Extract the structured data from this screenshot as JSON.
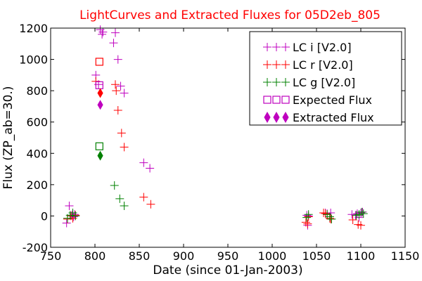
{
  "chart_data": {
    "type": "scatter",
    "title": "LightCurves and Extracted Fluxes for 05D2eb_805",
    "title_color": "#ff0000",
    "xlabel": "Date (since 01-Jan-2003)",
    "ylabel": "Flux (ZP_ab=30.)",
    "xlim": [
      750,
      1150
    ],
    "ylim": [
      -200,
      1200
    ],
    "xticks": [
      750,
      800,
      850,
      900,
      950,
      1000,
      1050,
      1100,
      1150
    ],
    "yticks": [
      -200,
      0,
      200,
      400,
      600,
      800,
      1000,
      1200
    ],
    "grid": false,
    "legend_position": "top-right",
    "series": [
      {
        "name": "LC i [V2.0]",
        "color": "#bf00bf",
        "marker": "plus",
        "points": [
          [
            768,
            -45
          ],
          [
            771,
            65
          ],
          [
            774,
            5
          ],
          [
            776,
            -5
          ],
          [
            777,
            10
          ],
          [
            801,
            900
          ],
          [
            804,
            840
          ],
          [
            806,
            1190
          ],
          [
            808,
            1160
          ],
          [
            809,
            1175
          ],
          [
            821,
            1105
          ],
          [
            823,
            1170
          ],
          [
            826,
            1000
          ],
          [
            829,
            830
          ],
          [
            833,
            785
          ],
          [
            855,
            340
          ],
          [
            862,
            305
          ],
          [
            1039,
            5
          ],
          [
            1040,
            -60
          ],
          [
            1041,
            0
          ],
          [
            1060,
            20
          ],
          [
            1062,
            15
          ],
          [
            1066,
            20
          ],
          [
            1090,
            10
          ],
          [
            1094,
            5
          ],
          [
            1096,
            15
          ],
          [
            1098,
            -10
          ],
          [
            1100,
            20
          ],
          [
            1102,
            25
          ]
        ]
      },
      {
        "name": "LC r [V2.0]",
        "color": "#ff0000",
        "marker": "plus",
        "points": [
          [
            769,
            -20
          ],
          [
            773,
            0
          ],
          [
            775,
            -15
          ],
          [
            778,
            5
          ],
          [
            801,
            860
          ],
          [
            823,
            840
          ],
          [
            824,
            800
          ],
          [
            826,
            675
          ],
          [
            830,
            530
          ],
          [
            833,
            440
          ],
          [
            855,
            120
          ],
          [
            863,
            75
          ],
          [
            1038,
            -40
          ],
          [
            1040,
            -50
          ],
          [
            1041,
            -5
          ],
          [
            1058,
            20
          ],
          [
            1060,
            15
          ],
          [
            1062,
            10
          ],
          [
            1065,
            -15
          ],
          [
            1066,
            -20
          ],
          [
            1091,
            -25
          ],
          [
            1097,
            -55
          ],
          [
            1100,
            -60
          ]
        ]
      },
      {
        "name": "LC g [V2.0]",
        "color": "#008000",
        "marker": "plus",
        "points": [
          [
            769,
            -15
          ],
          [
            772,
            5
          ],
          [
            775,
            20
          ],
          [
            778,
            0
          ],
          [
            822,
            195
          ],
          [
            828,
            110
          ],
          [
            833,
            65
          ],
          [
            1039,
            -10
          ],
          [
            1041,
            10
          ],
          [
            1062,
            10
          ],
          [
            1065,
            -5
          ],
          [
            1067,
            -20
          ],
          [
            1095,
            5
          ],
          [
            1098,
            10
          ],
          [
            1101,
            25
          ],
          [
            1103,
            15
          ]
        ]
      }
    ],
    "expected_flux": {
      "name": "Expected Flux",
      "x": 805,
      "points": [
        {
          "band": "i",
          "value": 835,
          "color": "#bf00bf"
        },
        {
          "band": "r",
          "value": 985,
          "color": "#ff0000"
        },
        {
          "band": "g",
          "value": 445,
          "color": "#008000"
        }
      ]
    },
    "extracted_flux": {
      "name": "Extracted Flux",
      "x": 806,
      "points": [
        {
          "band": "i",
          "value": 710,
          "color": "#bf00bf"
        },
        {
          "band": "r",
          "value": 785,
          "color": "#ff0000"
        },
        {
          "band": "g",
          "value": 385,
          "color": "#008000"
        }
      ]
    },
    "legend": [
      {
        "label": "LC i [V2.0]",
        "marker": "plus",
        "colors": [
          "#bf00bf",
          "#bf00bf",
          "#bf00bf"
        ]
      },
      {
        "label": "LC r [V2.0]",
        "marker": "plus",
        "colors": [
          "#ff0000",
          "#ff0000",
          "#ff0000"
        ]
      },
      {
        "label": "LC g [V2.0]",
        "marker": "plus",
        "colors": [
          "#008000",
          "#008000",
          "#008000"
        ]
      },
      {
        "label": "Expected Flux",
        "marker": "square",
        "colors": [
          "#bf00bf",
          "#bf00bf",
          "#bf00bf"
        ]
      },
      {
        "label": "Extracted Flux",
        "marker": "diamond",
        "colors": [
          "#bf00bf",
          "#bf00bf",
          "#bf00bf"
        ]
      }
    ]
  }
}
